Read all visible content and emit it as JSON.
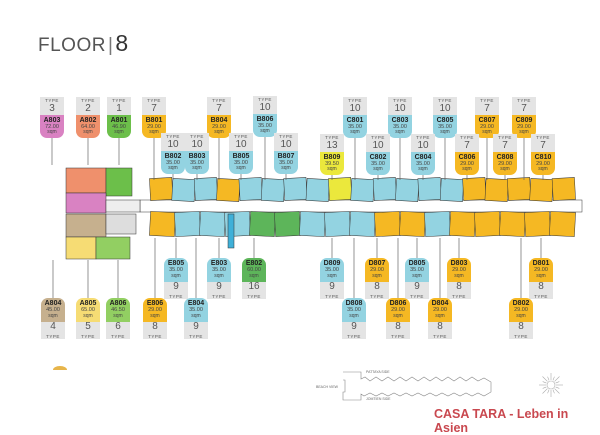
{
  "header": {
    "title": "FLOOR",
    "separator": "|",
    "floor_number": "8"
  },
  "labels": {
    "type": "TYPE",
    "unit_area": "sqm"
  },
  "colors": {
    "type1": "#6cbf4a",
    "type2": "#ef906c",
    "type3": "#d982c2",
    "type4": "#c6b08e",
    "type5": "#f6dc74",
    "type6": "#92cf62",
    "type7_8": "#f5b823",
    "type9_10": "#93d3e1",
    "type13": "#ebe83c",
    "type16": "#5db55a"
  },
  "top_tags": [
    {
      "unit": "A803",
      "type": "3",
      "area": "72.00",
      "color": "#d982c2"
    },
    {
      "unit": "A802",
      "type": "2",
      "area": "64.00",
      "color": "#ef906c"
    },
    {
      "unit": "A801",
      "type": "1",
      "area": "46.90",
      "color": "#6cbf4a"
    },
    {
      "unit": "B801",
      "type": "7",
      "area": "29.00",
      "color": "#f5b823"
    },
    {
      "unit": "B804",
      "type": "7",
      "area": "29.00",
      "color": "#f5b823"
    },
    {
      "unit": "B806",
      "type": "10",
      "area": "35.00",
      "color": "#93d3e1"
    },
    {
      "unit": "C801",
      "type": "10",
      "area": "35.00",
      "color": "#93d3e1"
    },
    {
      "unit": "C803",
      "type": "10",
      "area": "35.00",
      "color": "#93d3e1"
    },
    {
      "unit": "C805",
      "type": "10",
      "area": "35.00",
      "color": "#93d3e1"
    },
    {
      "unit": "C807",
      "type": "7",
      "area": "29.00",
      "color": "#f5b823"
    },
    {
      "unit": "C809",
      "type": "7",
      "area": "29.00",
      "color": "#f5b823"
    },
    {
      "unit": "B802",
      "type": "10",
      "area": "35.00",
      "color": "#93d3e1"
    },
    {
      "unit": "B803",
      "type": "10",
      "area": "35.00",
      "color": "#93d3e1"
    },
    {
      "unit": "B805",
      "type": "10",
      "area": "35.00",
      "color": "#93d3e1"
    },
    {
      "unit": "B807",
      "type": "10",
      "area": "35.00",
      "color": "#93d3e1"
    },
    {
      "unit": "B809",
      "type": "13",
      "area": "39.50",
      "color": "#ebe83c"
    },
    {
      "unit": "C802",
      "type": "10",
      "area": "35.00",
      "color": "#93d3e1"
    },
    {
      "unit": "C804",
      "type": "10",
      "area": "35.00",
      "color": "#93d3e1"
    },
    {
      "unit": "C806",
      "type": "7",
      "area": "29.00",
      "color": "#f5b823"
    },
    {
      "unit": "C808",
      "type": "7",
      "area": "29.00",
      "color": "#f5b823"
    },
    {
      "unit": "C810",
      "type": "7",
      "area": "29.00",
      "color": "#f5b823"
    }
  ],
  "bottom_tags": [
    {
      "unit": "E805",
      "type": "9",
      "area": "35.00",
      "color": "#93d3e1"
    },
    {
      "unit": "E803",
      "type": "9",
      "area": "35.00",
      "color": "#93d3e1"
    },
    {
      "unit": "E802",
      "type": "16",
      "area": "60.00",
      "color": "#5db55a"
    },
    {
      "unit": "D809",
      "type": "9",
      "area": "35.00",
      "color": "#93d3e1"
    },
    {
      "unit": "D807",
      "type": "8",
      "area": "29.00",
      "color": "#f5b823"
    },
    {
      "unit": "D805",
      "type": "9",
      "area": "35.00",
      "color": "#93d3e1"
    },
    {
      "unit": "D803",
      "type": "8",
      "area": "29.00",
      "color": "#f5b823"
    },
    {
      "unit": "D801",
      "type": "8",
      "area": "29.00",
      "color": "#f5b823"
    },
    {
      "unit": "A804",
      "type": "4",
      "area": "45.00",
      "color": "#c6b08e"
    },
    {
      "unit": "A805",
      "type": "5",
      "area": "65.00",
      "color": "#f6dc74"
    },
    {
      "unit": "A806",
      "type": "6",
      "area": "46.50",
      "color": "#92cf62"
    },
    {
      "unit": "E806",
      "type": "8",
      "area": "29.00",
      "color": "#f5b823"
    },
    {
      "unit": "E804",
      "type": "9",
      "area": "35.00",
      "color": "#93d3e1"
    },
    {
      "unit": "D808",
      "type": "9",
      "area": "35.00",
      "color": "#93d3e1"
    },
    {
      "unit": "D806",
      "type": "8",
      "area": "29.00",
      "color": "#f5b823"
    },
    {
      "unit": "D804",
      "type": "8",
      "area": "29.00",
      "color": "#f5b823"
    },
    {
      "unit": "D802",
      "type": "8",
      "area": "29.00",
      "color": "#f5b823"
    }
  ],
  "key_map": {
    "north_side": "PATTAYA SIDE",
    "south_side": "JOMTIEN SIDE",
    "west_side": "BEACH VIEW"
  },
  "watermark": "CASA TARA - Leben in Asien"
}
